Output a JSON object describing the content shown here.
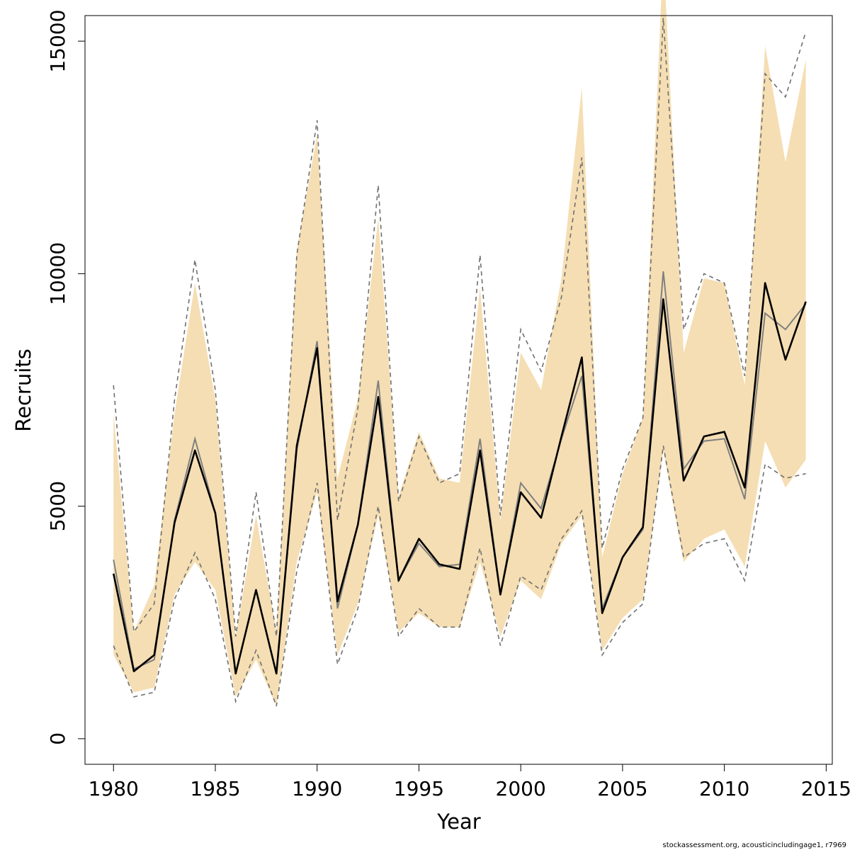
{
  "chart_data": {
    "type": "line",
    "title": "",
    "xlabel": "Year",
    "ylabel": "Recruits",
    "xlim": [
      1978.6,
      2015.3
    ],
    "ylim": [
      -550,
      15550
    ],
    "xticks": [
      1980,
      1985,
      1990,
      1995,
      2000,
      2005,
      2010,
      2015
    ],
    "yticks": [
      0,
      5000,
      10000,
      15000
    ],
    "grid": false,
    "legend": "none",
    "colors": {
      "band": "#F5DEB3",
      "dashed": "#707070",
      "line_gray": "#808080",
      "line_black": "#000000"
    },
    "x": [
      1980,
      1981,
      1982,
      1983,
      1984,
      1985,
      1986,
      1987,
      1988,
      1989,
      1990,
      1991,
      1992,
      1993,
      1994,
      1995,
      1996,
      1997,
      1998,
      1999,
      2000,
      2001,
      2002,
      2003,
      2004,
      2005,
      2006,
      2007,
      2008,
      2009,
      2010,
      2011,
      2012,
      2013,
      2014
    ],
    "series": [
      {
        "role": "band-upper",
        "values": [
          7000,
          2300,
          3300,
          7000,
          9800,
          7300,
          2200,
          4800,
          2300,
          10500,
          13000,
          5600,
          7300,
          11200,
          5200,
          6600,
          5600,
          5500,
          9700,
          4700,
          8300,
          7500,
          9900,
          14000,
          3900,
          5700,
          6900,
          16900,
          8300,
          9900,
          9800,
          7600,
          14900,
          12400,
          14600
        ]
      },
      {
        "role": "band-lower",
        "values": [
          1800,
          1000,
          1100,
          3100,
          3800,
          3200,
          900,
          1700,
          700,
          3800,
          5300,
          1800,
          2900,
          4800,
          2300,
          2700,
          2400,
          2400,
          3800,
          2200,
          3400,
          3000,
          4200,
          4800,
          1900,
          2600,
          3000,
          6200,
          3800,
          4300,
          4500,
          3700,
          6400,
          5400,
          6000
        ]
      },
      {
        "role": "dashed-upper",
        "values": [
          7600,
          2300,
          2900,
          7300,
          10300,
          7500,
          2200,
          5300,
          2200,
          10400,
          13300,
          4700,
          7100,
          11900,
          5100,
          6500,
          5500,
          5700,
          10400,
          4800,
          8800,
          7900,
          9500,
          12500,
          4100,
          5800,
          6900,
          15500,
          8800,
          10000,
          9800,
          7800,
          14300,
          13800,
          15200
        ]
      },
      {
        "role": "dashed-lower",
        "values": [
          2000,
          900,
          1000,
          3000,
          4000,
          3000,
          800,
          1900,
          700,
          3600,
          5500,
          1600,
          2800,
          5000,
          2200,
          2800,
          2400,
          2400,
          4100,
          2000,
          3500,
          3200,
          4300,
          4900,
          1800,
          2500,
          2900,
          6300,
          3900,
          4200,
          4300,
          3400,
          5900,
          5600,
          5700
        ]
      },
      {
        "role": "mean-gray",
        "values": [
          3850,
          1500,
          1700,
          4700,
          6450,
          4850,
          1400,
          3200,
          1400,
          6200,
          8550,
          2800,
          4600,
          7700,
          3400,
          4200,
          3700,
          3750,
          6450,
          3100,
          5500,
          4950,
          6450,
          7800,
          2800,
          3900,
          4500,
          10050,
          5800,
          6400,
          6450,
          5150,
          9150,
          8800,
          9350
        ]
      },
      {
        "role": "mean-black",
        "values": [
          3550,
          1450,
          1800,
          4650,
          6200,
          4850,
          1400,
          3200,
          1400,
          6300,
          8400,
          2950,
          4600,
          7350,
          3400,
          4300,
          3750,
          3650,
          6200,
          3100,
          5300,
          4750,
          6500,
          8200,
          2700,
          3900,
          4550,
          9450,
          5550,
          6500,
          6600,
          5400,
          9800,
          8150,
          9400
        ]
      }
    ]
  },
  "credit": "stockassessment.org, acousticincludingage1, r7969"
}
